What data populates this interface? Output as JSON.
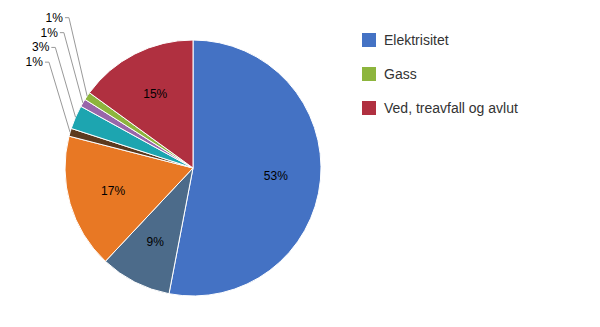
{
  "chart_data": {
    "type": "pie",
    "categories": [
      "Elektrisitet",
      null,
      null,
      null,
      null,
      null,
      "Gass",
      "Ved, treavfall og avlut"
    ],
    "values": [
      53,
      9,
      17,
      1,
      3,
      1,
      1,
      15
    ],
    "value_labels": [
      "53%",
      "9%",
      "17%",
      "1%",
      "3%",
      "1%",
      "1%",
      "15%"
    ],
    "colors": [
      "#4472C4",
      "#4C6B8A",
      "#E87824",
      "#5C3A1E",
      "#1DA5B0",
      "#9966AA",
      "#8DB53D",
      "#B03040"
    ],
    "data_labels": true,
    "legend": "upper right"
  }
}
